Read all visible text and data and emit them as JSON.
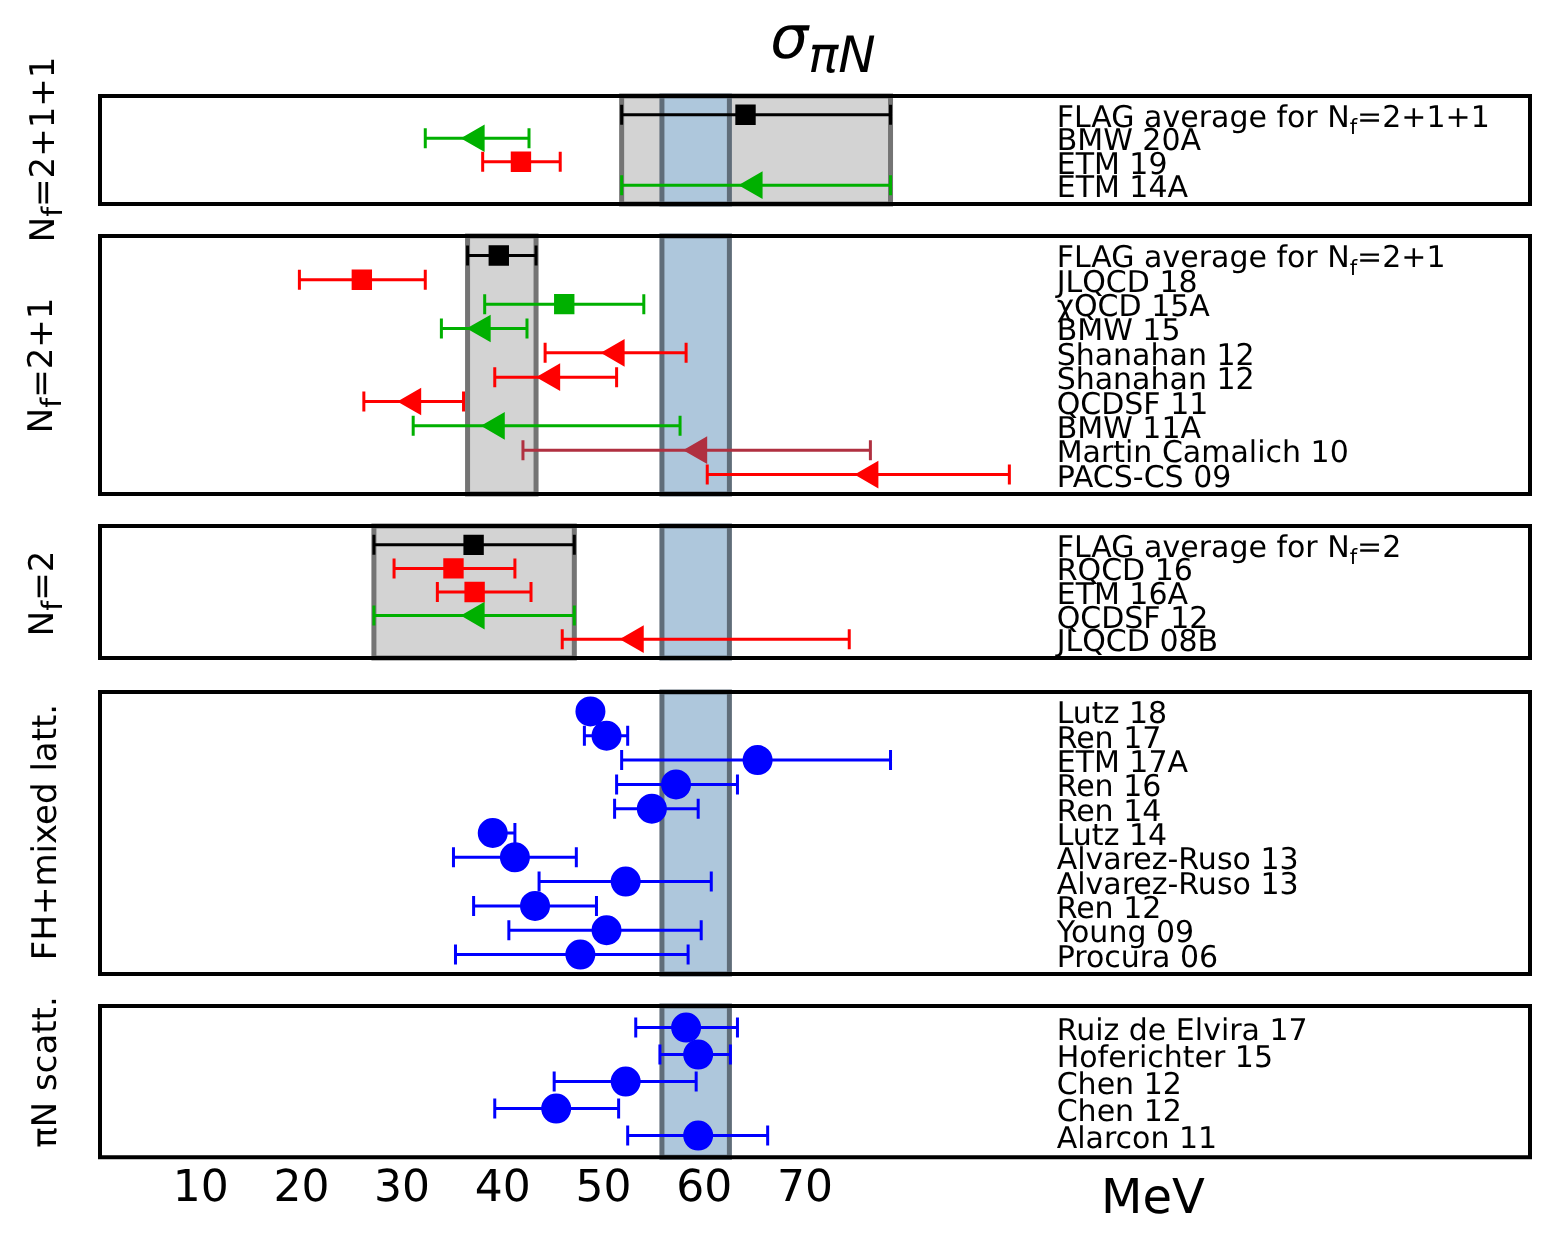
{
  "chart_data": [
    {
      "type": "scatter",
      "title": "σ$_{πN}$",
      "ylabel": "N$_{f}$=2+1+1",
      "orientation": "horizontal",
      "tick_labels": "y",
      "xlim": [
        0,
        142
      ],
      "categories": [
        "FLAG average for N$_{f}$=2+1+1",
        "BMW 20A",
        "ETM 19",
        "ETM 14A"
      ],
      "series": [
        {
          "color": "#000000",
          "marker": "square",
          "values": [
            64.1,
            null,
            null,
            null
          ],
          "errors": [
            [
              51.8,
              78.5
            ],
            null,
            null,
            null
          ]
        },
        {
          "color": "#00b000",
          "marker": "triangle",
          "values": [
            null,
            37.4,
            null,
            65.0
          ],
          "errors": [
            null,
            [
              32.3,
              42.6
            ],
            null,
            [
              51.8,
              78.5
            ]
          ]
        },
        {
          "color": "#ff0000",
          "marker": "square",
          "values": [
            null,
            null,
            41.8,
            null
          ],
          "errors": [
            null,
            null,
            [
              38.0,
              45.7
            ],
            null
          ]
        }
      ],
      "bands": [
        {
          "axis": "x",
          "from": 51.8,
          "to": 78.5,
          "color": "#d3d3d3"
        },
        {
          "axis": "x",
          "from": 55.8,
          "to": 62.5,
          "color": "#aec7dc"
        }
      ]
    },
    {
      "type": "scatter",
      "ylabel": "N$_{f}$=2+1",
      "orientation": "horizontal",
      "tick_labels": "y",
      "xlim": [
        0,
        142
      ],
      "categories": [
        "FLAG average for N$_{f}$=2+1",
        "JLQCD 18",
        "χQCD 15A",
        "BMW 15",
        "Shanahan 12",
        "Shanahan 12",
        "QCDSF 11",
        "BMW 11A",
        "Martin Camalich 10",
        "PACS-CS 09"
      ],
      "series": [
        {
          "color": "#000000",
          "marker": "square",
          "values": [
            39.6,
            null,
            null,
            null,
            null,
            null,
            null,
            null,
            null,
            null
          ],
          "errors": [
            [
              36.5,
              43.3
            ],
            null,
            null,
            null,
            null,
            null,
            null,
            null,
            null,
            null
          ]
        },
        {
          "color": "#ff0000",
          "marker": "square",
          "values": [
            null,
            26.0,
            null,
            null,
            null,
            null,
            null,
            null,
            null,
            null
          ],
          "errors": [
            null,
            [
              19.8,
              32.3
            ],
            null,
            null,
            null,
            null,
            null,
            null,
            null,
            null
          ]
        },
        {
          "color": "#00b000",
          "marker": "square",
          "values": [
            null,
            null,
            46.1,
            null,
            null,
            null,
            null,
            null,
            null,
            null
          ],
          "errors": [
            null,
            null,
            [
              38.2,
              54.0
            ],
            null,
            null,
            null,
            null,
            null,
            null,
            null
          ]
        },
        {
          "color": "#00b000",
          "marker": "triangle",
          "values": [
            null,
            null,
            null,
            38.0,
            null,
            null,
            null,
            39.4,
            null,
            null
          ],
          "errors": [
            null,
            null,
            null,
            [
              33.9,
              42.4
            ],
            null,
            null,
            null,
            [
              31.1,
              57.6
            ],
            null,
            null
          ]
        },
        {
          "color": "#ff0000",
          "marker": "triangle",
          "values": [
            null,
            null,
            null,
            null,
            51.3,
            44.9,
            31.1,
            null,
            null,
            76.5
          ],
          "errors": [
            null,
            null,
            null,
            null,
            [
              44.2,
              58.2
            ],
            [
              39.2,
              51.3
            ],
            [
              26.2,
              36.1
            ],
            null,
            null,
            [
              60.3,
              90.3
            ]
          ]
        },
        {
          "color": "#b03040",
          "marker": "triangle",
          "values": [
            null,
            null,
            null,
            null,
            null,
            null,
            null,
            null,
            59.5,
            null
          ],
          "errors": [
            null,
            null,
            null,
            null,
            null,
            null,
            null,
            null,
            [
              42.0,
              76.5
            ],
            null
          ]
        }
      ],
      "bands": [
        {
          "axis": "x",
          "from": 36.5,
          "to": 43.3,
          "color": "#d3d3d3"
        },
        {
          "axis": "x",
          "from": 55.8,
          "to": 62.5,
          "color": "#aec7dc"
        }
      ]
    },
    {
      "type": "scatter",
      "ylabel": "N$_{f}$=2",
      "orientation": "horizontal",
      "tick_labels": "y",
      "xlim": [
        0,
        142
      ],
      "categories": [
        "FLAG average for N$_{f}$=2",
        "RQCD 16",
        "ETM 16A",
        "QCDSF 12",
        "JLQCD 08B"
      ],
      "series": [
        {
          "color": "#000000",
          "marker": "square",
          "values": [
            37.1,
            null,
            null,
            null,
            null
          ],
          "errors": [
            [
              27.2,
              47.1
            ],
            null,
            null,
            null,
            null
          ]
        },
        {
          "color": "#ff0000",
          "marker": "square",
          "values": [
            null,
            35.1,
            37.2,
            null,
            null
          ],
          "errors": [
            null,
            [
              29.2,
              41.2
            ],
            [
              33.5,
              42.8
            ],
            null,
            null
          ]
        },
        {
          "color": "#00b000",
          "marker": "triangle",
          "values": [
            null,
            null,
            null,
            37.4,
            null
          ],
          "errors": [
            null,
            null,
            null,
            [
              27.2,
              47.1
            ],
            null
          ]
        },
        {
          "color": "#ff0000",
          "marker": "triangle",
          "values": [
            null,
            null,
            null,
            null,
            53.2
          ],
          "errors": [
            null,
            null,
            null,
            null,
            [
              45.9,
              74.4
            ]
          ]
        }
      ],
      "bands": [
        {
          "axis": "x",
          "from": 27.2,
          "to": 47.1,
          "color": "#d3d3d3"
        },
        {
          "axis": "x",
          "from": 55.8,
          "to": 62.5,
          "color": "#aec7dc"
        }
      ]
    },
    {
      "type": "scatter",
      "ylabel": "FH+mixed latt.",
      "orientation": "horizontal",
      "tick_labels": "y",
      "xlim": [
        0,
        142
      ],
      "categories": [
        "Lutz 18",
        "Ren 17",
        "ETM 17A",
        "Ren 16",
        "Ren 14",
        "Lutz 14",
        "Alvarez-Ruso 13",
        "Alvarez-Ruso 13",
        "Ren 12",
        "Young 09",
        "Procura 06"
      ],
      "series": [
        {
          "color": "#0000ff",
          "marker": "circle",
          "values": [
            48.7,
            50.3,
            65.3,
            57.2,
            54.8,
            39.0,
            41.2,
            52.2,
            43.2,
            50.3,
            47.7
          ],
          "errors": [
            null,
            [
              48.1,
              52.4
            ],
            [
              51.8,
              78.5
            ],
            [
              51.3,
              63.3
            ],
            [
              51.1,
              59.4
            ],
            [
              39.0,
              41.2
            ],
            [
              35.1,
              47.3
            ],
            [
              43.6,
              60.7
            ],
            [
              37.1,
              49.3
            ],
            [
              40.6,
              59.7
            ],
            [
              35.3,
              58.4
            ]
          ]
        }
      ],
      "bands": [
        {
          "axis": "x",
          "from": 55.8,
          "to": 62.5,
          "color": "#aec7dc"
        }
      ]
    },
    {
      "type": "scatter",
      "ylabel": "πN scatt.",
      "xlabel": "MeV",
      "orientation": "horizontal",
      "xlim": [
        0,
        142
      ],
      "xticks": [
        10,
        20,
        30,
        40,
        50,
        60,
        70
      ],
      "categories": [
        "Ruiz de Elvira 17",
        "Hoferichter 15",
        "Chen 12",
        "Chen 12",
        "Alarcon 11"
      ],
      "series": [
        {
          "color": "#0000ff",
          "marker": "circle",
          "values": [
            58.2,
            59.4,
            52.2,
            45.3,
            59.4
          ],
          "errors": [
            [
              53.2,
              63.3
            ],
            [
              55.6,
              62.6
            ],
            [
              45.1,
              59.2
            ],
            [
              39.2,
              51.5
            ],
            [
              52.4,
              66.3
            ]
          ]
        }
      ],
      "bands": [
        {
          "axis": "x",
          "from": 55.8,
          "to": 62.5,
          "color": "#aec7dc"
        }
      ]
    }
  ]
}
